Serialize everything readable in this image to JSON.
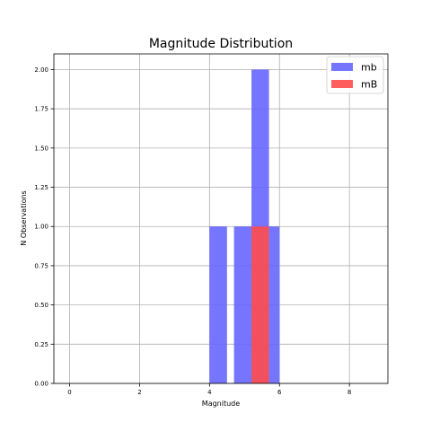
{
  "chart_data": {
    "type": "bar",
    "title": "Magnitude Distribution",
    "xlabel": "Magnitude",
    "ylabel": "N Observations",
    "xlim": [
      -0.45,
      9.1
    ],
    "ylim": [
      0,
      2.1
    ],
    "xticks": [
      0,
      2,
      4,
      6,
      8
    ],
    "yticks": [
      0.0,
      0.25,
      0.5,
      0.75,
      1.0,
      1.25,
      1.5,
      1.75,
      2.0
    ],
    "grid": true,
    "legend_position": "top-right",
    "series": [
      {
        "name": "mb",
        "color": "#6666ff",
        "bins": [
          {
            "x0": 4.0,
            "x1": 4.5,
            "value": 1
          },
          {
            "x0": 4.7,
            "x1": 5.2,
            "value": 1
          },
          {
            "x0": 5.2,
            "x1": 5.7,
            "value": 2
          },
          {
            "x0": 5.7,
            "x1": 6.0,
            "value": 1
          }
        ]
      },
      {
        "name": "mB",
        "color": "#ff4d4d",
        "bins": [
          {
            "x0": 5.2,
            "x1": 5.7,
            "value": 1
          }
        ]
      }
    ]
  }
}
